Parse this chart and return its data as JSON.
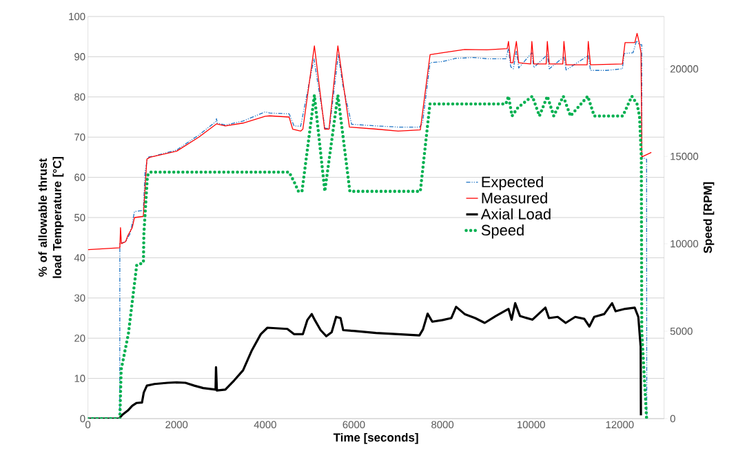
{
  "chart_data": {
    "type": "line",
    "xlabel": "Time [seconds]",
    "ylabel": "% of allowable thrust load Temperature [°C]",
    "y2label": "Speed [RPM]",
    "xlim": [
      0,
      13000
    ],
    "xticks": [
      0,
      2000,
      4000,
      6000,
      8000,
      10000,
      12000
    ],
    "ylim": [
      0,
      100
    ],
    "yticks": [
      0,
      10,
      20,
      30,
      40,
      50,
      60,
      70,
      80,
      90,
      100
    ],
    "y2lim": [
      0,
      23000
    ],
    "y2ticks": [
      0,
      5000,
      10000,
      15000,
      20000
    ],
    "grid": "y",
    "legend": "right",
    "series": [
      {
        "name": "Expected",
        "color": "#1f74c4",
        "line_style": "dashed",
        "x": [
          0,
          718,
          720,
          850,
          950,
          1000,
          1050,
          1250,
          1290,
          1350,
          1500,
          2000,
          2500,
          2880,
          2900,
          2920,
          3100,
          3500,
          4000,
          4100,
          4540,
          4650,
          4800,
          5100,
          5350,
          5450,
          5650,
          5750,
          5950,
          6500,
          7000,
          7480,
          7550,
          7720,
          8000,
          8300,
          8700,
          9000,
          9430,
          9490,
          9540,
          9600,
          9668,
          9720,
          10017,
          10060,
          10366,
          10410,
          10741,
          10790,
          11290,
          11340,
          11700,
          12060,
          12100,
          12300,
          12380,
          12440,
          12497,
          12500,
          12606,
          12610
        ],
        "values": [
          0,
          0,
          43.5,
          44,
          46,
          48.5,
          51.5,
          51.8,
          61.5,
          65,
          65.3,
          66.8,
          70.5,
          73.8,
          74.6,
          73.5,
          73,
          74,
          76.3,
          76,
          75.8,
          72.8,
          72.7,
          89.5,
          72.2,
          72.2,
          90.5,
          83,
          73.2,
          72.8,
          72.5,
          72.5,
          73.5,
          88.5,
          88.8,
          89.6,
          89.8,
          89.5,
          89.5,
          92,
          87.5,
          87,
          91.5,
          87.2,
          91,
          87.3,
          90.5,
          87,
          90,
          86.7,
          90.3,
          86.6,
          86.6,
          87,
          90.8,
          91,
          94,
          93,
          93,
          65,
          64.5,
          0
        ]
      },
      {
        "name": "Measured",
        "color": "#ff0000",
        "line_style": "solid",
        "x": [
          0,
          720,
          735,
          755,
          850,
          900,
          1000,
          1050,
          1250,
          1330,
          1400,
          2000,
          2500,
          2900,
          3100,
          3500,
          4000,
          4100,
          4540,
          4620,
          4800,
          4850,
          5110,
          5340,
          5440,
          5640,
          5900,
          6500,
          7000,
          7500,
          7720,
          8000,
          8500,
          9000,
          9460,
          9490,
          9540,
          9590,
          9668,
          9720,
          9990,
          10017,
          10060,
          10340,
          10366,
          10410,
          10715,
          10741,
          10790,
          11265,
          11290,
          11340,
          12060,
          12120,
          12340,
          12391,
          12440,
          12480,
          12500,
          12713
        ],
        "values": [
          42,
          42.5,
          47.5,
          43.5,
          44,
          45.5,
          47.5,
          50,
          50.3,
          64.5,
          65,
          66.5,
          70,
          73.3,
          72.8,
          73.5,
          75.2,
          75.3,
          75,
          72,
          71.5,
          72,
          92.7,
          72,
          72,
          92.7,
          72.5,
          72,
          71.5,
          71.8,
          90.5,
          91,
          91.8,
          91.7,
          92,
          93.8,
          88.5,
          88.5,
          93.8,
          88.5,
          88.2,
          93.8,
          88.2,
          88.2,
          93.8,
          88.2,
          88.2,
          93.8,
          88,
          88,
          93.8,
          88,
          88.2,
          93.5,
          93.5,
          95.8,
          93.5,
          91,
          65.1,
          66.2
        ]
      },
      {
        "name": "Axial Load",
        "color": "#000000",
        "line_style": "solid",
        "x": [
          0,
          700,
          780,
          900,
          1000,
          1100,
          1220,
          1260,
          1330,
          1500,
          1800,
          2000,
          2200,
          2400,
          2600,
          2880,
          2890,
          2910,
          3100,
          3300,
          3500,
          3700,
          3900,
          4050,
          4500,
          4650,
          4850,
          4950,
          5050,
          5120,
          5250,
          5380,
          5500,
          5600,
          5700,
          5760,
          6000,
          6500,
          7000,
          7480,
          7560,
          7665,
          7770,
          8000,
          8200,
          8308,
          8500,
          8738,
          8953,
          9200,
          9490,
          9560,
          9641,
          9750,
          10028,
          10322,
          10402,
          10600,
          10780,
          10995,
          11200,
          11315,
          11424,
          11650,
          11827,
          11907,
          12123,
          12338,
          12419,
          12472,
          12478
        ],
        "values": [
          0,
          0,
          1,
          2,
          3.2,
          3.9,
          4,
          6.5,
          8.2,
          8.6,
          8.9,
          9,
          8.9,
          8.2,
          7.6,
          7.2,
          12.8,
          7,
          7.2,
          9.5,
          12,
          17,
          21,
          22.6,
          22.3,
          21,
          21,
          24.5,
          26,
          24.5,
          22,
          20.5,
          21.5,
          25.3,
          25,
          22,
          21.8,
          21.3,
          21,
          20.7,
          22.2,
          26.1,
          24.1,
          24.5,
          25,
          27.8,
          26,
          25,
          23.8,
          25.5,
          27.3,
          24.6,
          28.7,
          25.5,
          24.6,
          27.6,
          25,
          25.3,
          23.8,
          25.3,
          24.8,
          22.9,
          25.3,
          26,
          28.7,
          26.7,
          27.3,
          27.6,
          25.3,
          17.9,
          0.8
        ]
      },
      {
        "name": "Speed",
        "color": "#00b050",
        "line_style": "dotted",
        "axis": "y2",
        "x": [
          0,
          720,
          750,
          913,
          1003,
          1101,
          1252,
          1262,
          1300,
          1343,
          1400,
          4540,
          4660,
          4750,
          4830,
          5110,
          5345,
          5640,
          5910,
          7500,
          7717,
          9430,
          9490,
          9570,
          9705,
          10028,
          10188,
          10366,
          10511,
          10726,
          10888,
          11279,
          11424,
          12069,
          12273,
          12390,
          12446,
          12487,
          12497,
          12606
        ],
        "values": [
          0,
          0,
          2800,
          4850,
          6740,
          8780,
          8920,
          10560,
          12130,
          13900,
          14100,
          14100,
          13500,
          13000,
          13000,
          18500,
          13000,
          18500,
          13000,
          13000,
          18000,
          18000,
          18440,
          17310,
          17800,
          18440,
          17310,
          18440,
          17310,
          18440,
          17310,
          18440,
          17310,
          17310,
          18440,
          18000,
          17310,
          15000,
          5000,
          0
        ]
      }
    ]
  }
}
